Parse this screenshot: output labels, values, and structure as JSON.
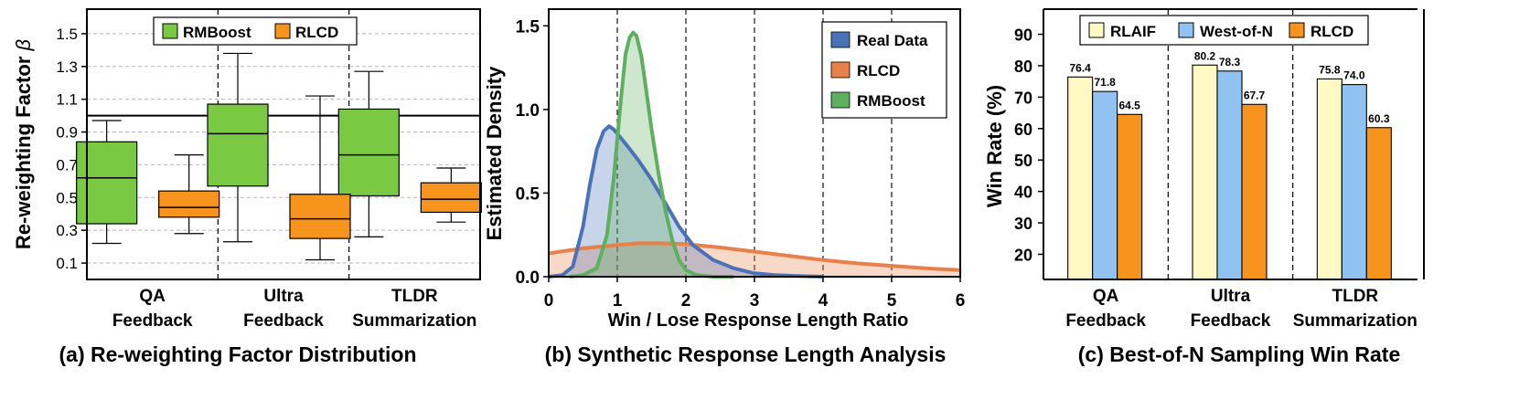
{
  "chart_data": [
    {
      "type": "box",
      "caption": "(a) Re-weighting Factor Distribution",
      "ylabel": "Re-weighting Factor",
      "ylabel_symbol": "β",
      "ylim": [
        0.0,
        1.65
      ],
      "yticks": [
        "0.1",
        "0.3",
        "0.5",
        "0.7",
        "0.9",
        "1.1",
        "1.3",
        "1.5"
      ],
      "reference_line": 1.0,
      "categories": [
        [
          "QA",
          "Feedback"
        ],
        [
          "Ultra",
          "Feedback"
        ],
        [
          "TLDR",
          "Summarization"
        ]
      ],
      "series": [
        {
          "name": "RMBoost",
          "color": "#7ac943",
          "boxes": [
            {
              "min": 0.22,
              "q1": 0.34,
              "median": 0.62,
              "q3": 0.84,
              "max": 0.97
            },
            {
              "min": 0.23,
              "q1": 0.57,
              "median": 0.89,
              "q3": 1.07,
              "max": 1.38
            },
            {
              "min": 0.26,
              "q1": 0.51,
              "median": 0.76,
              "q3": 1.04,
              "max": 1.27
            }
          ]
        },
        {
          "name": "RLCD",
          "color": "#f7941d",
          "boxes": [
            {
              "min": 0.28,
              "q1": 0.38,
              "median": 0.44,
              "q3": 0.54,
              "max": 0.76
            },
            {
              "min": 0.12,
              "q1": 0.25,
              "median": 0.37,
              "q3": 0.52,
              "max": 1.12
            },
            {
              "min": 0.35,
              "q1": 0.41,
              "median": 0.49,
              "q3": 0.59,
              "max": 0.68
            }
          ]
        }
      ]
    },
    {
      "type": "density",
      "caption": "(b) Synthetic Response Length Analysis",
      "xlabel": "Win / Lose Response Length Ratio",
      "ylabel": "Estimated Density",
      "xlim": [
        0,
        6
      ],
      "ylim": [
        0,
        1.6
      ],
      "xticks": [
        "0",
        "1",
        "2",
        "3",
        "4",
        "5",
        "6"
      ],
      "yticks": [
        "0.0",
        "0.5",
        "1.0",
        "1.5"
      ],
      "grid": "dashed vertical at integer ratios",
      "series": [
        {
          "name": "Real Data",
          "color": "#4a72b8",
          "x": [
            0.0,
            0.2,
            0.35,
            0.5,
            0.6,
            0.7,
            0.8,
            0.88,
            0.95,
            1.05,
            1.15,
            1.3,
            1.5,
            1.7,
            1.9,
            2.1,
            2.4,
            2.7,
            3.0,
            3.3,
            3.6,
            4.0
          ],
          "y": [
            0.0,
            0.01,
            0.06,
            0.3,
            0.55,
            0.76,
            0.87,
            0.9,
            0.88,
            0.83,
            0.78,
            0.7,
            0.58,
            0.44,
            0.3,
            0.19,
            0.1,
            0.05,
            0.02,
            0.01,
            0.005,
            0.0
          ]
        },
        {
          "name": "RLCD",
          "color": "#e8804a",
          "x": [
            0.0,
            0.5,
            1.0,
            1.3,
            1.6,
            2.0,
            2.5,
            3.0,
            3.5,
            4.0,
            4.5,
            5.0,
            5.5,
            6.0
          ],
          "y": [
            0.14,
            0.17,
            0.19,
            0.2,
            0.2,
            0.195,
            0.175,
            0.15,
            0.125,
            0.1,
            0.08,
            0.065,
            0.05,
            0.04
          ]
        },
        {
          "name": "RMBoost",
          "color": "#5db05d",
          "x": [
            0.3,
            0.5,
            0.7,
            0.85,
            0.95,
            1.05,
            1.12,
            1.18,
            1.23,
            1.28,
            1.35,
            1.42,
            1.5,
            1.6,
            1.7,
            1.8,
            1.9,
            2.0,
            2.15,
            2.4,
            2.7
          ],
          "y": [
            0.0,
            0.01,
            0.05,
            0.25,
            0.6,
            1.05,
            1.33,
            1.43,
            1.46,
            1.44,
            1.32,
            1.12,
            0.88,
            0.62,
            0.4,
            0.22,
            0.1,
            0.04,
            0.01,
            0.0,
            0.0
          ]
        }
      ]
    },
    {
      "type": "bar",
      "caption": "(c) Best-of-N Sampling Win Rate",
      "ylabel": "Win Rate (%)",
      "ylim": [
        12,
        98
      ],
      "yticks": [
        "20",
        "30",
        "40",
        "50",
        "60",
        "70",
        "80",
        "90"
      ],
      "categories": [
        [
          "QA",
          "Feedback"
        ],
        [
          "Ultra",
          "Feedback"
        ],
        [
          "TLDR",
          "Summarization"
        ]
      ],
      "series": [
        {
          "name": "RLAIF",
          "color": "#fff9c4",
          "values": [
            76.4,
            80.2,
            75.8
          ],
          "labels": [
            "76.4",
            "80.2",
            "75.8"
          ]
        },
        {
          "name": "West-of-N",
          "color": "#91c3f2",
          "values": [
            71.8,
            78.3,
            74.0
          ],
          "labels": [
            "71.8",
            "78.3",
            "74.0"
          ]
        },
        {
          "name": "RLCD",
          "color": "#f7941d",
          "values": [
            64.5,
            67.7,
            60.3
          ],
          "labels": [
            "64.5",
            "67.7",
            "60.3"
          ]
        }
      ]
    }
  ]
}
